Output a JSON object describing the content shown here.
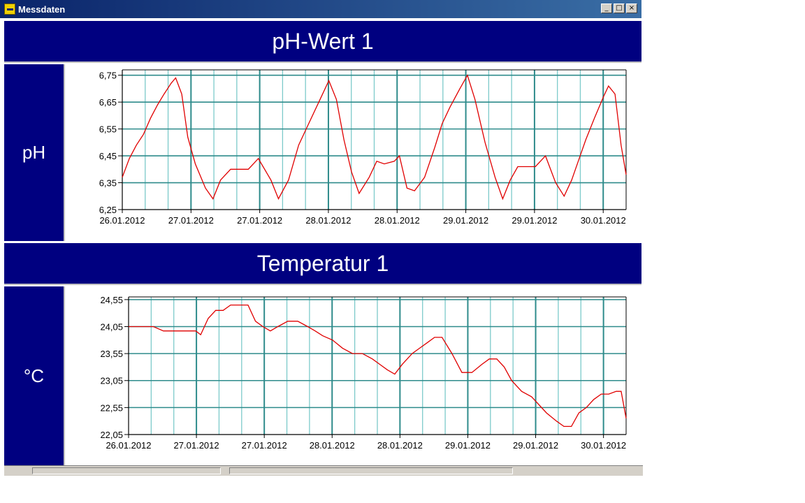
{
  "window": {
    "title": "Messdaten",
    "icon": "app-icon",
    "buttons": [
      "_",
      "□",
      "×"
    ]
  },
  "colors": {
    "header_bg": "#000080",
    "line": "#e00000",
    "grid": "#2e8b8b",
    "grid_light": "#7ccaca"
  },
  "charts": [
    {
      "title": "pH-Wert 1",
      "unit": "pH"
    },
    {
      "title": "Temperatur 1",
      "unit": "°C"
    }
  ],
  "chart_data": [
    {
      "type": "line",
      "title": "pH-Wert 1",
      "ylabel": "pH",
      "y_tick_labels": [
        "6,25",
        "6,35",
        "6,45",
        "6,55",
        "6,65",
        "6,75"
      ],
      "ylim": [
        6.25,
        6.77
      ],
      "x_tick_labels": [
        "26.01.2012",
        "27.01.2012",
        "27.01.2012",
        "28.01.2012",
        "28.01.2012",
        "29.01.2012",
        "29.01.2012",
        "30.01.2012"
      ],
      "xlim": [
        0,
        100
      ],
      "grid": true,
      "series": [
        {
          "x": [
            0,
            1.4,
            2.8,
            4.2,
            5.6,
            7,
            8.3,
            9.7,
            10.6,
            11.8,
            13,
            14.5,
            16.5,
            18,
            19.5,
            21.5,
            23.5,
            25,
            27,
            29.5,
            31,
            33,
            35,
            37,
            39,
            41,
            42.5,
            44,
            45.5,
            47,
            49,
            50.5,
            52,
            54,
            55,
            56.5,
            58,
            60,
            62,
            63.5,
            65,
            67,
            68.5,
            70,
            72,
            74,
            75.5,
            77,
            78.5,
            80,
            82,
            84,
            86,
            87.7,
            89.2,
            90.5,
            92,
            93.7,
            95.5,
            96.5,
            97.8,
            99,
            100
          ],
          "y": [
            6.37,
            6.44,
            6.49,
            6.53,
            6.59,
            6.64,
            6.68,
            6.72,
            6.74,
            6.68,
            6.52,
            6.42,
            6.33,
            6.29,
            6.36,
            6.4,
            6.4,
            6.4,
            6.44,
            6.36,
            6.29,
            6.36,
            6.49,
            6.57,
            6.65,
            6.73,
            6.66,
            6.51,
            6.39,
            6.31,
            6.37,
            6.43,
            6.42,
            6.43,
            6.45,
            6.33,
            6.32,
            6.37,
            6.48,
            6.57,
            6.63,
            6.7,
            6.75,
            6.66,
            6.5,
            6.37,
            6.29,
            6.36,
            6.41,
            6.41,
            6.41,
            6.45,
            6.35,
            6.3,
            6.36,
            6.43,
            6.51,
            6.59,
            6.67,
            6.71,
            6.68,
            6.49,
            6.38
          ]
        }
      ]
    },
    {
      "type": "line",
      "title": "Temperatur 1",
      "ylabel": "°C",
      "y_tick_labels": [
        "22,05",
        "22,55",
        "23,05",
        "23,55",
        "24,05",
        "24,55"
      ],
      "ylim": [
        22.05,
        24.6
      ],
      "x_tick_labels": [
        "26.01.2012",
        "27.01.2012",
        "27.01.2012",
        "28.01.2012",
        "28.01.2012",
        "29.01.2012",
        "29.01.2012",
        "30.01.2012"
      ],
      "xlim": [
        0,
        100
      ],
      "grid": true,
      "series": [
        {
          "x": [
            0,
            1.5,
            3.5,
            5,
            7,
            9,
            11,
            12,
            13,
            13.5,
            14.5,
            16,
            17.5,
            19,
            20.5,
            22,
            24,
            25.5,
            27,
            28.5,
            30,
            32,
            34,
            36,
            37.5,
            39,
            41,
            43,
            45,
            47,
            49,
            50.5,
            52,
            53.5,
            55,
            57,
            58.5,
            60,
            61.5,
            63,
            65,
            67,
            69,
            71,
            72.5,
            74,
            75.5,
            77,
            79,
            81,
            82.5,
            84,
            86,
            87.5,
            89,
            90.5,
            92,
            93.5,
            95,
            96.5,
            98,
            99,
            100
          ],
          "y": [
            24.05,
            24.05,
            24.05,
            24.05,
            23.97,
            23.97,
            23.97,
            23.97,
            23.97,
            23.97,
            23.9,
            24.2,
            24.35,
            24.35,
            24.45,
            24.45,
            24.45,
            24.15,
            24.05,
            23.97,
            24.05,
            24.15,
            24.15,
            24.05,
            23.97,
            23.88,
            23.8,
            23.65,
            23.55,
            23.55,
            23.45,
            23.35,
            23.25,
            23.17,
            23.35,
            23.55,
            23.65,
            23.75,
            23.85,
            23.85,
            23.55,
            23.2,
            23.2,
            23.35,
            23.45,
            23.45,
            23.3,
            23.05,
            22.85,
            22.75,
            22.6,
            22.45,
            22.3,
            22.2,
            22.2,
            22.45,
            22.55,
            22.7,
            22.8,
            22.8,
            22.85,
            22.85,
            22.35
          ]
        }
      ]
    }
  ]
}
